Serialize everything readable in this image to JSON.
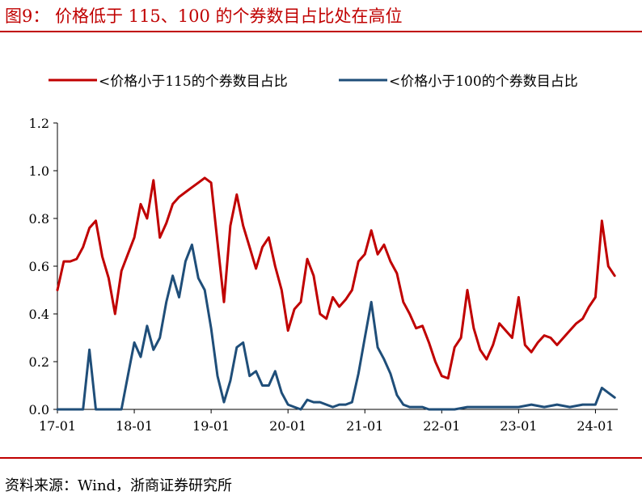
{
  "header": {
    "title": "图9：   价格低于 115、100 的个券数目占比处在高位"
  },
  "footer": {
    "source": "资料来源：Wind，浙商证券研究所"
  },
  "chart_data": {
    "type": "line",
    "title": "",
    "xlabel": "",
    "ylabel": "",
    "ylim": [
      0,
      1.2
    ],
    "y_ticks": [
      "0.0",
      "0.2",
      "0.4",
      "0.6",
      "0.8",
      "1.0",
      "1.2"
    ],
    "x_ticks": [
      "17-01",
      "18-01",
      "19-01",
      "20-01",
      "21-01",
      "22-01",
      "23-01",
      "24-01"
    ],
    "grid": false,
    "legend_position": "top",
    "series": [
      {
        "name": "<价格小于115的个券数目占比",
        "color": "#c00000",
        "points": [
          [
            "2017-01",
            0.5
          ],
          [
            "2017-02",
            0.62
          ],
          [
            "2017-03",
            0.62
          ],
          [
            "2017-04",
            0.63
          ],
          [
            "2017-05",
            0.68
          ],
          [
            "2017-06",
            0.76
          ],
          [
            "2017-07",
            0.79
          ],
          [
            "2017-08",
            0.64
          ],
          [
            "2017-09",
            0.55
          ],
          [
            "2017-10",
            0.4
          ],
          [
            "2017-11",
            0.58
          ],
          [
            "2017-12",
            0.65
          ],
          [
            "2018-01",
            0.72
          ],
          [
            "2018-02",
            0.86
          ],
          [
            "2018-03",
            0.8
          ],
          [
            "2018-04",
            0.96
          ],
          [
            "2018-05",
            0.72
          ],
          [
            "2018-06",
            0.78
          ],
          [
            "2018-07",
            0.86
          ],
          [
            "2018-08",
            0.89
          ],
          [
            "2018-09",
            0.91
          ],
          [
            "2018-10",
            0.93
          ],
          [
            "2018-11",
            0.95
          ],
          [
            "2018-12",
            0.97
          ],
          [
            "2019-01",
            0.95
          ],
          [
            "2019-02",
            0.7
          ],
          [
            "2019-03",
            0.45
          ],
          [
            "2019-04",
            0.77
          ],
          [
            "2019-05",
            0.9
          ],
          [
            "2019-06",
            0.77
          ],
          [
            "2019-07",
            0.68
          ],
          [
            "2019-08",
            0.59
          ],
          [
            "2019-09",
            0.68
          ],
          [
            "2019-10",
            0.72
          ],
          [
            "2019-11",
            0.6
          ],
          [
            "2019-12",
            0.5
          ],
          [
            "2020-01",
            0.33
          ],
          [
            "2020-02",
            0.42
          ],
          [
            "2020-03",
            0.45
          ],
          [
            "2020-04",
            0.63
          ],
          [
            "2020-05",
            0.56
          ],
          [
            "2020-06",
            0.4
          ],
          [
            "2020-07",
            0.38
          ],
          [
            "2020-08",
            0.47
          ],
          [
            "2020-09",
            0.43
          ],
          [
            "2020-10",
            0.46
          ],
          [
            "2020-11",
            0.5
          ],
          [
            "2020-12",
            0.62
          ],
          [
            "2021-01",
            0.65
          ],
          [
            "2021-02",
            0.75
          ],
          [
            "2021-03",
            0.65
          ],
          [
            "2021-04",
            0.69
          ],
          [
            "2021-05",
            0.62
          ],
          [
            "2021-06",
            0.57
          ],
          [
            "2021-07",
            0.45
          ],
          [
            "2021-08",
            0.4
          ],
          [
            "2021-09",
            0.34
          ],
          [
            "2021-10",
            0.35
          ],
          [
            "2021-11",
            0.28
          ],
          [
            "2021-12",
            0.2
          ],
          [
            "2022-01",
            0.14
          ],
          [
            "2022-02",
            0.13
          ],
          [
            "2022-03",
            0.26
          ],
          [
            "2022-04",
            0.3
          ],
          [
            "2022-05",
            0.5
          ],
          [
            "2022-06",
            0.34
          ],
          [
            "2022-07",
            0.25
          ],
          [
            "2022-08",
            0.21
          ],
          [
            "2022-09",
            0.27
          ],
          [
            "2022-10",
            0.36
          ],
          [
            "2022-11",
            0.33
          ],
          [
            "2022-12",
            0.3
          ],
          [
            "2023-01",
            0.47
          ],
          [
            "2023-02",
            0.27
          ],
          [
            "2023-03",
            0.24
          ],
          [
            "2023-04",
            0.28
          ],
          [
            "2023-05",
            0.31
          ],
          [
            "2023-06",
            0.3
          ],
          [
            "2023-07",
            0.27
          ],
          [
            "2023-08",
            0.3
          ],
          [
            "2023-09",
            0.33
          ],
          [
            "2023-10",
            0.36
          ],
          [
            "2023-11",
            0.38
          ],
          [
            "2023-12",
            0.43
          ],
          [
            "2024-01",
            0.47
          ],
          [
            "2024-02",
            0.79
          ],
          [
            "2024-03",
            0.6
          ],
          [
            "2024-04",
            0.56
          ]
        ]
      },
      {
        "name": "<价格小于100的个券数目占比",
        "color": "#1f4e79",
        "points": [
          [
            "2017-01",
            0.0
          ],
          [
            "2017-03",
            0.0
          ],
          [
            "2017-05",
            0.0
          ],
          [
            "2017-06",
            0.25
          ],
          [
            "2017-07",
            0.0
          ],
          [
            "2017-08",
            0.0
          ],
          [
            "2017-10",
            0.0
          ],
          [
            "2017-11",
            0.0
          ],
          [
            "2017-12",
            0.14
          ],
          [
            "2018-01",
            0.28
          ],
          [
            "2018-02",
            0.22
          ],
          [
            "2018-03",
            0.35
          ],
          [
            "2018-04",
            0.25
          ],
          [
            "2018-05",
            0.3
          ],
          [
            "2018-06",
            0.45
          ],
          [
            "2018-07",
            0.56
          ],
          [
            "2018-08",
            0.47
          ],
          [
            "2018-09",
            0.62
          ],
          [
            "2018-10",
            0.69
          ],
          [
            "2018-11",
            0.55
          ],
          [
            "2018-12",
            0.5
          ],
          [
            "2019-01",
            0.34
          ],
          [
            "2019-02",
            0.14
          ],
          [
            "2019-03",
            0.03
          ],
          [
            "2019-04",
            0.12
          ],
          [
            "2019-05",
            0.26
          ],
          [
            "2019-06",
            0.28
          ],
          [
            "2019-07",
            0.14
          ],
          [
            "2019-08",
            0.16
          ],
          [
            "2019-09",
            0.1
          ],
          [
            "2019-10",
            0.1
          ],
          [
            "2019-11",
            0.16
          ],
          [
            "2019-12",
            0.07
          ],
          [
            "2020-01",
            0.02
          ],
          [
            "2020-02",
            0.01
          ],
          [
            "2020-03",
            0.0
          ],
          [
            "2020-04",
            0.04
          ],
          [
            "2020-05",
            0.03
          ],
          [
            "2020-06",
            0.03
          ],
          [
            "2020-07",
            0.02
          ],
          [
            "2020-08",
            0.01
          ],
          [
            "2020-09",
            0.02
          ],
          [
            "2020-10",
            0.02
          ],
          [
            "2020-11",
            0.03
          ],
          [
            "2020-12",
            0.15
          ],
          [
            "2021-01",
            0.3
          ],
          [
            "2021-02",
            0.45
          ],
          [
            "2021-03",
            0.26
          ],
          [
            "2021-04",
            0.21
          ],
          [
            "2021-05",
            0.15
          ],
          [
            "2021-06",
            0.06
          ],
          [
            "2021-07",
            0.02
          ],
          [
            "2021-08",
            0.01
          ],
          [
            "2021-09",
            0.01
          ],
          [
            "2021-10",
            0.01
          ],
          [
            "2021-11",
            0.0
          ],
          [
            "2021-12",
            0.0
          ],
          [
            "2022-01",
            0.0
          ],
          [
            "2022-03",
            0.0
          ],
          [
            "2022-05",
            0.01
          ],
          [
            "2022-07",
            0.01
          ],
          [
            "2022-09",
            0.01
          ],
          [
            "2022-11",
            0.01
          ],
          [
            "2023-01",
            0.01
          ],
          [
            "2023-03",
            0.02
          ],
          [
            "2023-05",
            0.01
          ],
          [
            "2023-07",
            0.02
          ],
          [
            "2023-09",
            0.01
          ],
          [
            "2023-11",
            0.02
          ],
          [
            "2024-01",
            0.02
          ],
          [
            "2024-02",
            0.09
          ],
          [
            "2024-03",
            0.07
          ],
          [
            "2024-04",
            0.05
          ]
        ]
      }
    ]
  }
}
